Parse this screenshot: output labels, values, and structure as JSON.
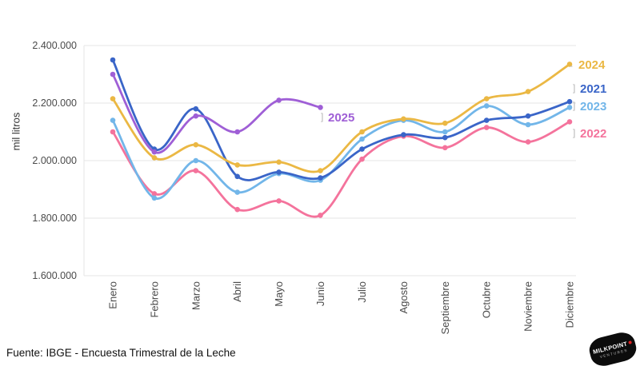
{
  "chart_data": {
    "type": "line",
    "title": "",
    "ylabel": "mil litros",
    "ylim": [
      1600000,
      2400000
    ],
    "grid": true,
    "legend_position": "end-of-line-right",
    "x": [
      "Enero",
      "Febrero",
      "Marzo",
      "Abril",
      "Mayo",
      "Junio",
      "Julio",
      "Agosto",
      "Septiembre",
      "Octubre",
      "Noviembre",
      "Diciembre"
    ],
    "yticks": [
      {
        "label": "2.400.000",
        "value": 2400000
      },
      {
        "label": "2.200.000",
        "value": 2200000
      },
      {
        "label": "2.000.000",
        "value": 2000000
      },
      {
        "label": "1.800.000",
        "value": 1800000
      },
      {
        "label": "1.600.000",
        "value": 1600000
      }
    ],
    "series": [
      {
        "name": "2021",
        "color": "#3a65c8",
        "values": [
          2350000,
          2040000,
          2180000,
          1945000,
          1960000,
          1940000,
          2040000,
          2090000,
          2080000,
          2140000,
          2155000,
          2205000
        ]
      },
      {
        "name": "2022",
        "color": "#f4739c",
        "values": [
          2100000,
          1885000,
          1965000,
          1830000,
          1860000,
          1810000,
          2005000,
          2085000,
          2045000,
          2115000,
          2065000,
          2135000
        ]
      },
      {
        "name": "2023",
        "color": "#72b6e9",
        "values": [
          2140000,
          1870000,
          2000000,
          1890000,
          1955000,
          1932000,
          2075000,
          2140000,
          2100000,
          2190000,
          2125000,
          2185000
        ]
      },
      {
        "name": "2024",
        "color": "#ebb844",
        "values": [
          2215000,
          2010000,
          2055000,
          1985000,
          1995000,
          1965000,
          2100000,
          2145000,
          2130000,
          2215000,
          2240000,
          2335000
        ]
      },
      {
        "name": "2025",
        "color": "#9f5fd6",
        "values": [
          2300000,
          2030000,
          2155000,
          2100000,
          2210000,
          2185000
        ]
      }
    ]
  },
  "footer": {
    "source": "Fuente: IBGE - Encuesta Trimestral de la Leche"
  },
  "logo": {
    "line1": "MILKPOINT",
    "line2": "VENTURES"
  }
}
